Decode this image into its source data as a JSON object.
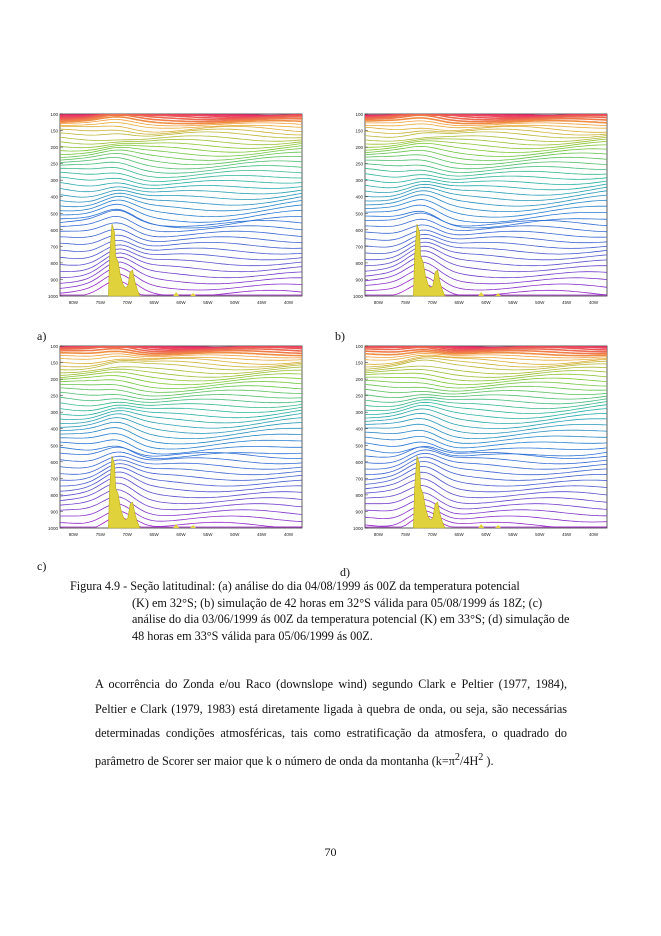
{
  "figure": {
    "panels": [
      {
        "letter": "a)",
        "y_ticks": [
          "100",
          "150",
          "200",
          "250",
          "300",
          "400",
          "500",
          "600",
          "700",
          "800",
          "900",
          "1000"
        ],
        "x_ticks": [
          "80W",
          "75W",
          "70W",
          "65W",
          "60W",
          "55W",
          "50W",
          "45W",
          "40W"
        ]
      },
      {
        "letter": "b)",
        "y_ticks": [
          "100",
          "150",
          "200",
          "250",
          "300",
          "400",
          "500",
          "600",
          "700",
          "800",
          "900",
          "1000"
        ],
        "x_ticks": [
          "80W",
          "75W",
          "70W",
          "65W",
          "60W",
          "55W",
          "50W",
          "45W",
          "40W"
        ]
      },
      {
        "letter": "c)",
        "y_ticks": [
          "100",
          "150",
          "200",
          "250",
          "300",
          "400",
          "500",
          "600",
          "700",
          "800",
          "900",
          "1000"
        ],
        "x_ticks": [
          "80W",
          "75W",
          "70W",
          "65W",
          "60W",
          "55W",
          "50W",
          "45W",
          "40W"
        ]
      },
      {
        "letter": "d)",
        "y_ticks": [
          "100",
          "150",
          "200",
          "250",
          "300",
          "400",
          "500",
          "600",
          "700",
          "800",
          "900",
          "1000"
        ],
        "x_ticks": [
          "80W",
          "75W",
          "70W",
          "65W",
          "60W",
          "55W",
          "50W",
          "45W",
          "40W"
        ]
      }
    ],
    "colors": {
      "top": "#e8226a",
      "upper": "#f2a83a",
      "mid_upper": "#7cc832",
      "mid": "#28b4a0",
      "middle": "#2a78d6",
      "lower": "#4a5ad0",
      "bottom": "#a020c8",
      "terrain": "#e0d23a"
    }
  },
  "caption": {
    "first_line": "Figura 4.9 - Seção latitudinal: (a) análise do dia 04/08/1999 ás 00Z da temperatura potencial",
    "rest": "(K) em 32°S; (b) simulação de 42 horas em 32°S válida para 05/08/1999 ás 18Z; (c) análise do dia 03/06/1999 ás 00Z da temperatura potencial (K) em 33°S; (d) simulação de 48 horas em 33°S válida para 05/06/1999 ás 00Z."
  },
  "paragraph": {
    "text": "A ocorrência do Zonda e/ou Raco (downslope wind) segundo Clark e Peltier (1977, 1984), Peltier e Clark (1979, 1983) está diretamente ligada à quebra de onda, ou seja, são necessárias determinadas condições atmosféricas, tais como estratificação da atmosfera, o quadrado do parâmetro de Scorer ser maior que k o número de onda da montanha (k=",
    "formula": "π",
    "formula_sup": "2",
    "formula_mid": "/4H",
    "formula_sup2": "2",
    "formula_end": " )."
  },
  "page_number": "70"
}
